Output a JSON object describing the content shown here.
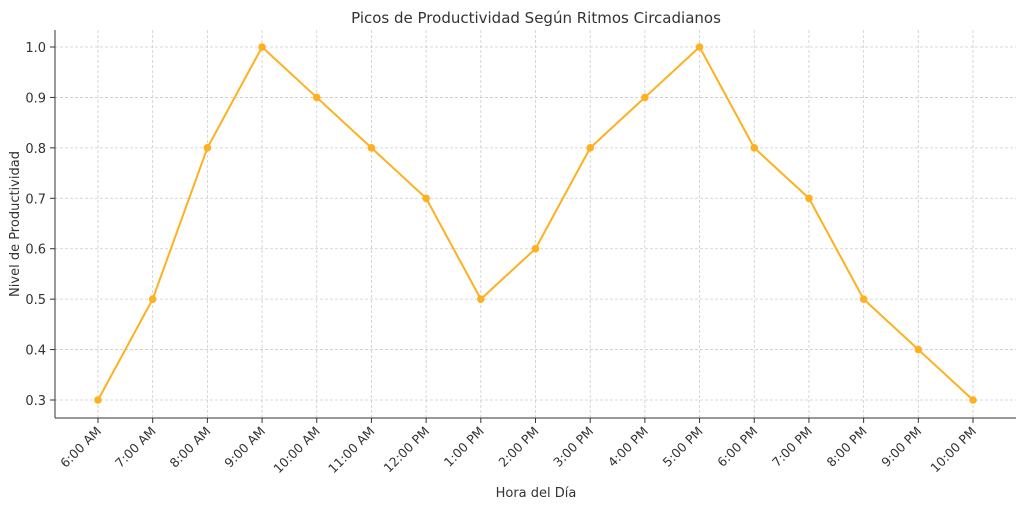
{
  "chart_data": {
    "type": "line",
    "title": "Picos de Productividad Según Ritmos Circadianos",
    "xlabel": "Hora del Día",
    "ylabel": "Nivel de Productividad",
    "categories": [
      "6:00 AM",
      "7:00 AM",
      "8:00 AM",
      "9:00 AM",
      "10:00 AM",
      "11:00 AM",
      "12:00 PM",
      "1:00 PM",
      "2:00 PM",
      "3:00 PM",
      "4:00 PM",
      "5:00 PM",
      "6:00 PM",
      "7:00 PM",
      "8:00 PM",
      "9:00 PM",
      "10:00 PM"
    ],
    "series": [
      {
        "name": "Nivel de Productividad",
        "color": "#FFB020",
        "marker": "circle",
        "values": [
          0.3,
          0.5,
          0.8,
          1.0,
          0.9,
          0.8,
          0.7,
          0.5,
          0.6,
          0.8,
          0.9,
          1.0,
          0.8,
          0.7,
          0.5,
          0.4,
          0.3
        ]
      }
    ],
    "yticks": [
      "0.3",
      "0.4",
      "0.5",
      "0.6",
      "0.7",
      "0.8",
      "0.9",
      "1.0"
    ],
    "ylim": [
      0.265,
      1.035
    ],
    "grid": true,
    "legend": "none",
    "xtick_rotation": 45
  }
}
